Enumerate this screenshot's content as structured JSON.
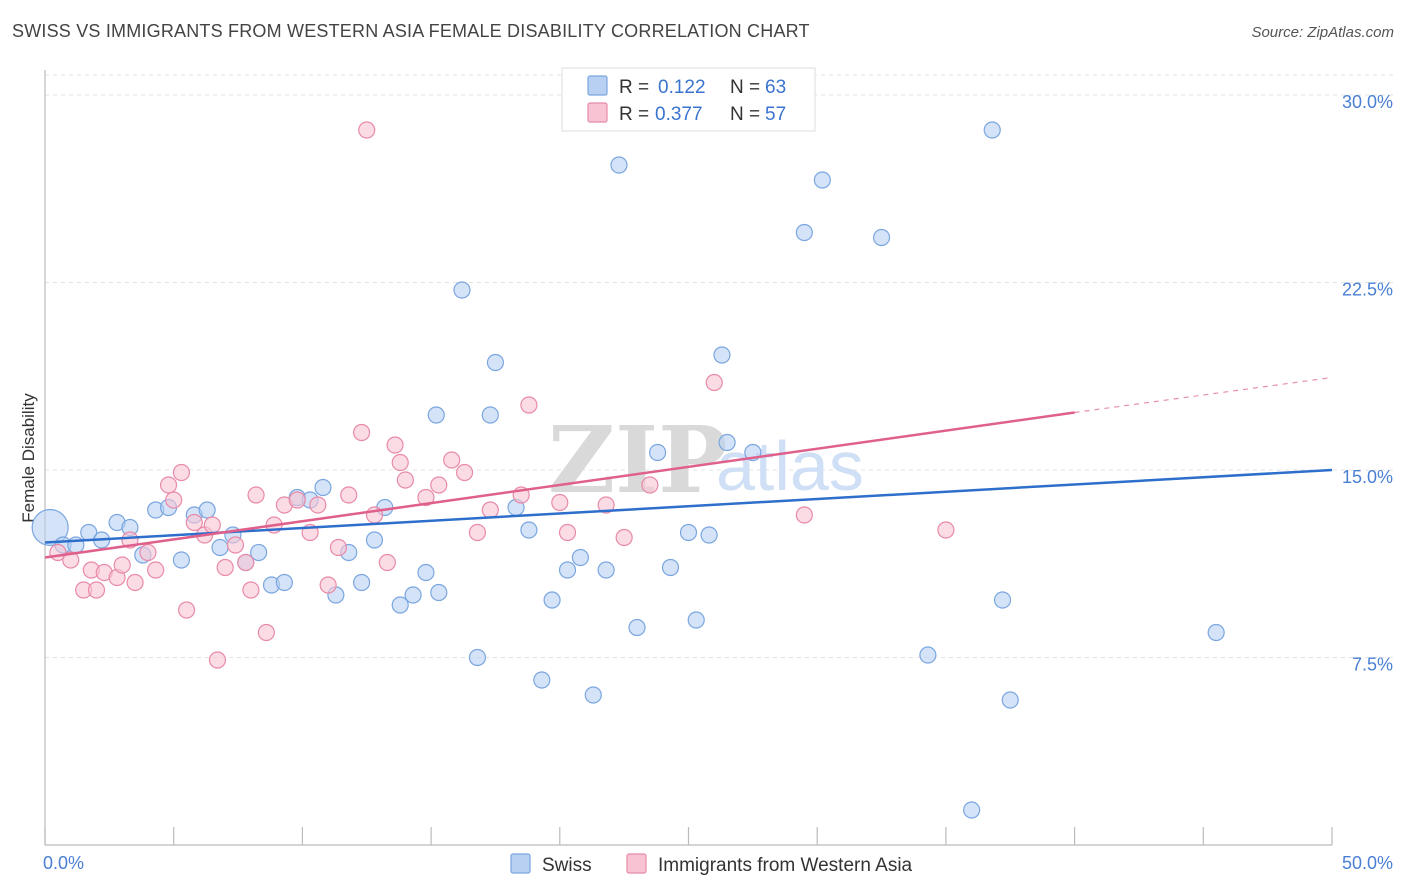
{
  "title": "SWISS VS IMMIGRANTS FROM WESTERN ASIA FEMALE DISABILITY CORRELATION CHART",
  "source": "Source: ZipAtlas.com",
  "watermark": {
    "zip": "ZIP",
    "atlas": "atlas"
  },
  "colors": {
    "swiss_fill": "#b8d0f2",
    "swiss_stroke": "#7aa6e0",
    "swiss_line": "#2f6fcc",
    "imm_fill": "#f8c4d4",
    "imm_stroke": "#e88aa8",
    "imm_line": "#e0608c",
    "tick_label": "#4a7fd4"
  },
  "legend": {
    "rows": [
      {
        "r_label": "R =",
        "r_value": "0.122",
        "n_label": "N =",
        "n_value": "63"
      },
      {
        "r_label": "R =",
        "r_value": "0.377",
        "n_label": "N =",
        "n_value": "57"
      }
    ]
  },
  "chart_data": {
    "type": "scatter",
    "title": "SWISS VS IMMIGRANTS FROM WESTERN ASIA FEMALE DISABILITY CORRELATION CHART",
    "xlabel": "",
    "ylabel": "Female Disability",
    "xlim": [
      0,
      50
    ],
    "ylim": [
      0,
      31
    ],
    "x_tick_labels": [
      "0.0%",
      "50.0%"
    ],
    "y_ticks": [
      7.5,
      15.0,
      22.5,
      30.0
    ],
    "y_tick_labels": [
      "7.5%",
      "15.0%",
      "22.5%",
      "30.0%"
    ],
    "grid": true,
    "legend_placement": "top-center",
    "series": [
      {
        "name": "Swiss",
        "trend": {
          "x": [
            0,
            50
          ],
          "y": [
            12.1,
            15.0
          ]
        },
        "points": [
          [
            0.2,
            12.7
          ],
          [
            0.7,
            12.0
          ],
          [
            1.2,
            12.0
          ],
          [
            1.7,
            12.5
          ],
          [
            2.2,
            12.2
          ],
          [
            2.8,
            12.9
          ],
          [
            3.3,
            12.7
          ],
          [
            3.8,
            11.6
          ],
          [
            4.3,
            13.4
          ],
          [
            4.8,
            13.5
          ],
          [
            5.3,
            11.4
          ],
          [
            5.8,
            13.2
          ],
          [
            6.3,
            13.4
          ],
          [
            6.8,
            11.9
          ],
          [
            7.3,
            12.4
          ],
          [
            7.8,
            11.3
          ],
          [
            8.3,
            11.7
          ],
          [
            8.8,
            10.4
          ],
          [
            9.3,
            10.5
          ],
          [
            9.8,
            13.9
          ],
          [
            10.3,
            13.8
          ],
          [
            10.8,
            14.3
          ],
          [
            11.3,
            10.0
          ],
          [
            11.8,
            11.7
          ],
          [
            12.3,
            10.5
          ],
          [
            12.8,
            12.2
          ],
          [
            13.2,
            13.5
          ],
          [
            13.8,
            9.6
          ],
          [
            14.3,
            10.0
          ],
          [
            14.8,
            10.9
          ],
          [
            15.3,
            10.1
          ],
          [
            15.2,
            17.2
          ],
          [
            16.2,
            22.2
          ],
          [
            16.8,
            7.5
          ],
          [
            17.3,
            17.2
          ],
          [
            17.5,
            19.3
          ],
          [
            18.3,
            13.5
          ],
          [
            18.8,
            12.6
          ],
          [
            19.3,
            6.6
          ],
          [
            19.7,
            9.8
          ],
          [
            20.3,
            11.0
          ],
          [
            20.8,
            11.5
          ],
          [
            21.3,
            6.0
          ],
          [
            21.8,
            11.0
          ],
          [
            22.3,
            27.2
          ],
          [
            23.0,
            8.7
          ],
          [
            23.8,
            15.7
          ],
          [
            24.3,
            11.1
          ],
          [
            25.0,
            12.5
          ],
          [
            25.3,
            9.0
          ],
          [
            25.8,
            12.4
          ],
          [
            26.3,
            19.6
          ],
          [
            26.5,
            16.1
          ],
          [
            27.5,
            15.7
          ],
          [
            29.5,
            24.5
          ],
          [
            30.2,
            26.6
          ],
          [
            32.5,
            24.3
          ],
          [
            34.3,
            7.6
          ],
          [
            36.0,
            1.4
          ],
          [
            36.8,
            28.6
          ],
          [
            37.2,
            9.8
          ],
          [
            37.5,
            5.8
          ],
          [
            45.5,
            8.5
          ]
        ]
      },
      {
        "name": "Immigrants from Western Asia",
        "trend": {
          "x": [
            0,
            40
          ],
          "y": [
            11.5,
            17.3
          ]
        },
        "trend_ext": {
          "x": [
            40,
            50
          ],
          "y": [
            17.3,
            18.7
          ]
        },
        "points": [
          [
            0.5,
            11.7
          ],
          [
            1.0,
            11.4
          ],
          [
            1.5,
            10.2
          ],
          [
            1.8,
            11.0
          ],
          [
            2.0,
            10.2
          ],
          [
            2.3,
            10.9
          ],
          [
            2.8,
            10.7
          ],
          [
            3.0,
            11.2
          ],
          [
            3.3,
            12.2
          ],
          [
            3.5,
            10.5
          ],
          [
            4.0,
            11.7
          ],
          [
            4.3,
            11.0
          ],
          [
            4.8,
            14.4
          ],
          [
            5.0,
            13.8
          ],
          [
            5.3,
            14.9
          ],
          [
            5.5,
            9.4
          ],
          [
            5.8,
            12.9
          ],
          [
            6.2,
            12.4
          ],
          [
            6.5,
            12.8
          ],
          [
            6.7,
            7.4
          ],
          [
            7.0,
            11.1
          ],
          [
            7.4,
            12.0
          ],
          [
            7.8,
            11.3
          ],
          [
            8.0,
            10.2
          ],
          [
            8.2,
            14.0
          ],
          [
            8.6,
            8.5
          ],
          [
            8.9,
            12.8
          ],
          [
            9.3,
            13.6
          ],
          [
            9.8,
            13.8
          ],
          [
            10.3,
            12.5
          ],
          [
            10.6,
            13.6
          ],
          [
            11.0,
            10.4
          ],
          [
            11.4,
            11.9
          ],
          [
            11.8,
            14.0
          ],
          [
            12.3,
            16.5
          ],
          [
            12.5,
            28.6
          ],
          [
            12.8,
            13.2
          ],
          [
            13.3,
            11.3
          ],
          [
            13.6,
            16.0
          ],
          [
            13.8,
            15.3
          ],
          [
            14.0,
            14.6
          ],
          [
            14.8,
            13.9
          ],
          [
            15.3,
            14.4
          ],
          [
            15.8,
            15.4
          ],
          [
            16.3,
            14.9
          ],
          [
            16.8,
            12.5
          ],
          [
            17.3,
            13.4
          ],
          [
            18.5,
            14.0
          ],
          [
            18.8,
            17.6
          ],
          [
            20.0,
            13.7
          ],
          [
            20.3,
            12.5
          ],
          [
            21.8,
            13.6
          ],
          [
            22.5,
            12.3
          ],
          [
            23.5,
            14.4
          ],
          [
            26.0,
            18.5
          ],
          [
            29.5,
            13.2
          ],
          [
            35.0,
            12.6
          ]
        ]
      }
    ]
  },
  "bottom_legend": {
    "items": [
      "Swiss",
      "Immigrants from Western Asia"
    ]
  }
}
